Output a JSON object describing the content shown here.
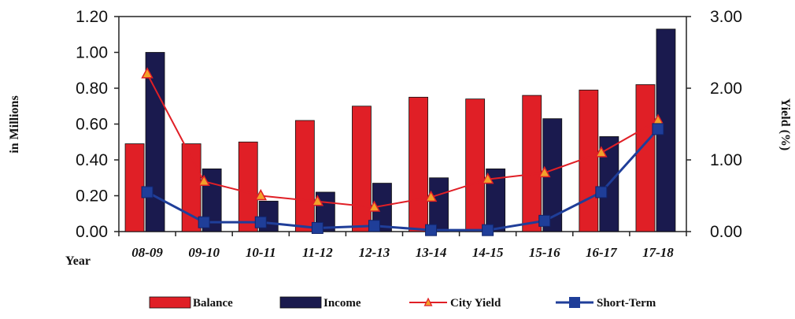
{
  "chart_data": {
    "type": "bar",
    "categories": [
      "08-09",
      "09-10",
      "10-11",
      "11-12",
      "12-13",
      "13-14",
      "14-15",
      "15-16",
      "16-17",
      "17-18"
    ],
    "series": [
      {
        "name": "Balance",
        "type": "bar",
        "axis": "left",
        "color": "#e01f26",
        "values": [
          0.49,
          0.49,
          0.5,
          0.62,
          0.7,
          0.75,
          0.74,
          0.76,
          0.79,
          0.82
        ]
      },
      {
        "name": "Income",
        "type": "bar",
        "axis": "left",
        "color": "#1a1a4e",
        "values": [
          1.0,
          0.35,
          0.17,
          0.22,
          0.27,
          0.3,
          0.35,
          0.63,
          0.53,
          1.13
        ]
      },
      {
        "name": "City Yield",
        "type": "line",
        "axis": "right",
        "color": "#e01f26",
        "marker": "triangle",
        "values": [
          2.2,
          0.7,
          0.5,
          0.42,
          0.34,
          0.48,
          0.73,
          0.82,
          1.1,
          1.55
        ]
      },
      {
        "name": "Short-Term",
        "type": "line",
        "axis": "right",
        "color": "#1f3e99",
        "marker": "square",
        "values": [
          0.55,
          0.13,
          0.13,
          0.05,
          0.08,
          0.02,
          0.02,
          0.15,
          0.55,
          1.43
        ]
      }
    ],
    "xlabel": "Year",
    "ylabel": "in Millions",
    "y2label": "Yield (%)",
    "ylim": [
      0,
      1.2
    ],
    "y2lim": [
      0,
      3
    ],
    "yticks": [
      "0.00",
      "0.20",
      "0.40",
      "0.60",
      "0.80",
      "1.00",
      "1.20"
    ],
    "y2ticks": [
      "0.00",
      "1.00",
      "2.00",
      "3.00"
    ],
    "legend_position": "bottom",
    "grid": false
  }
}
